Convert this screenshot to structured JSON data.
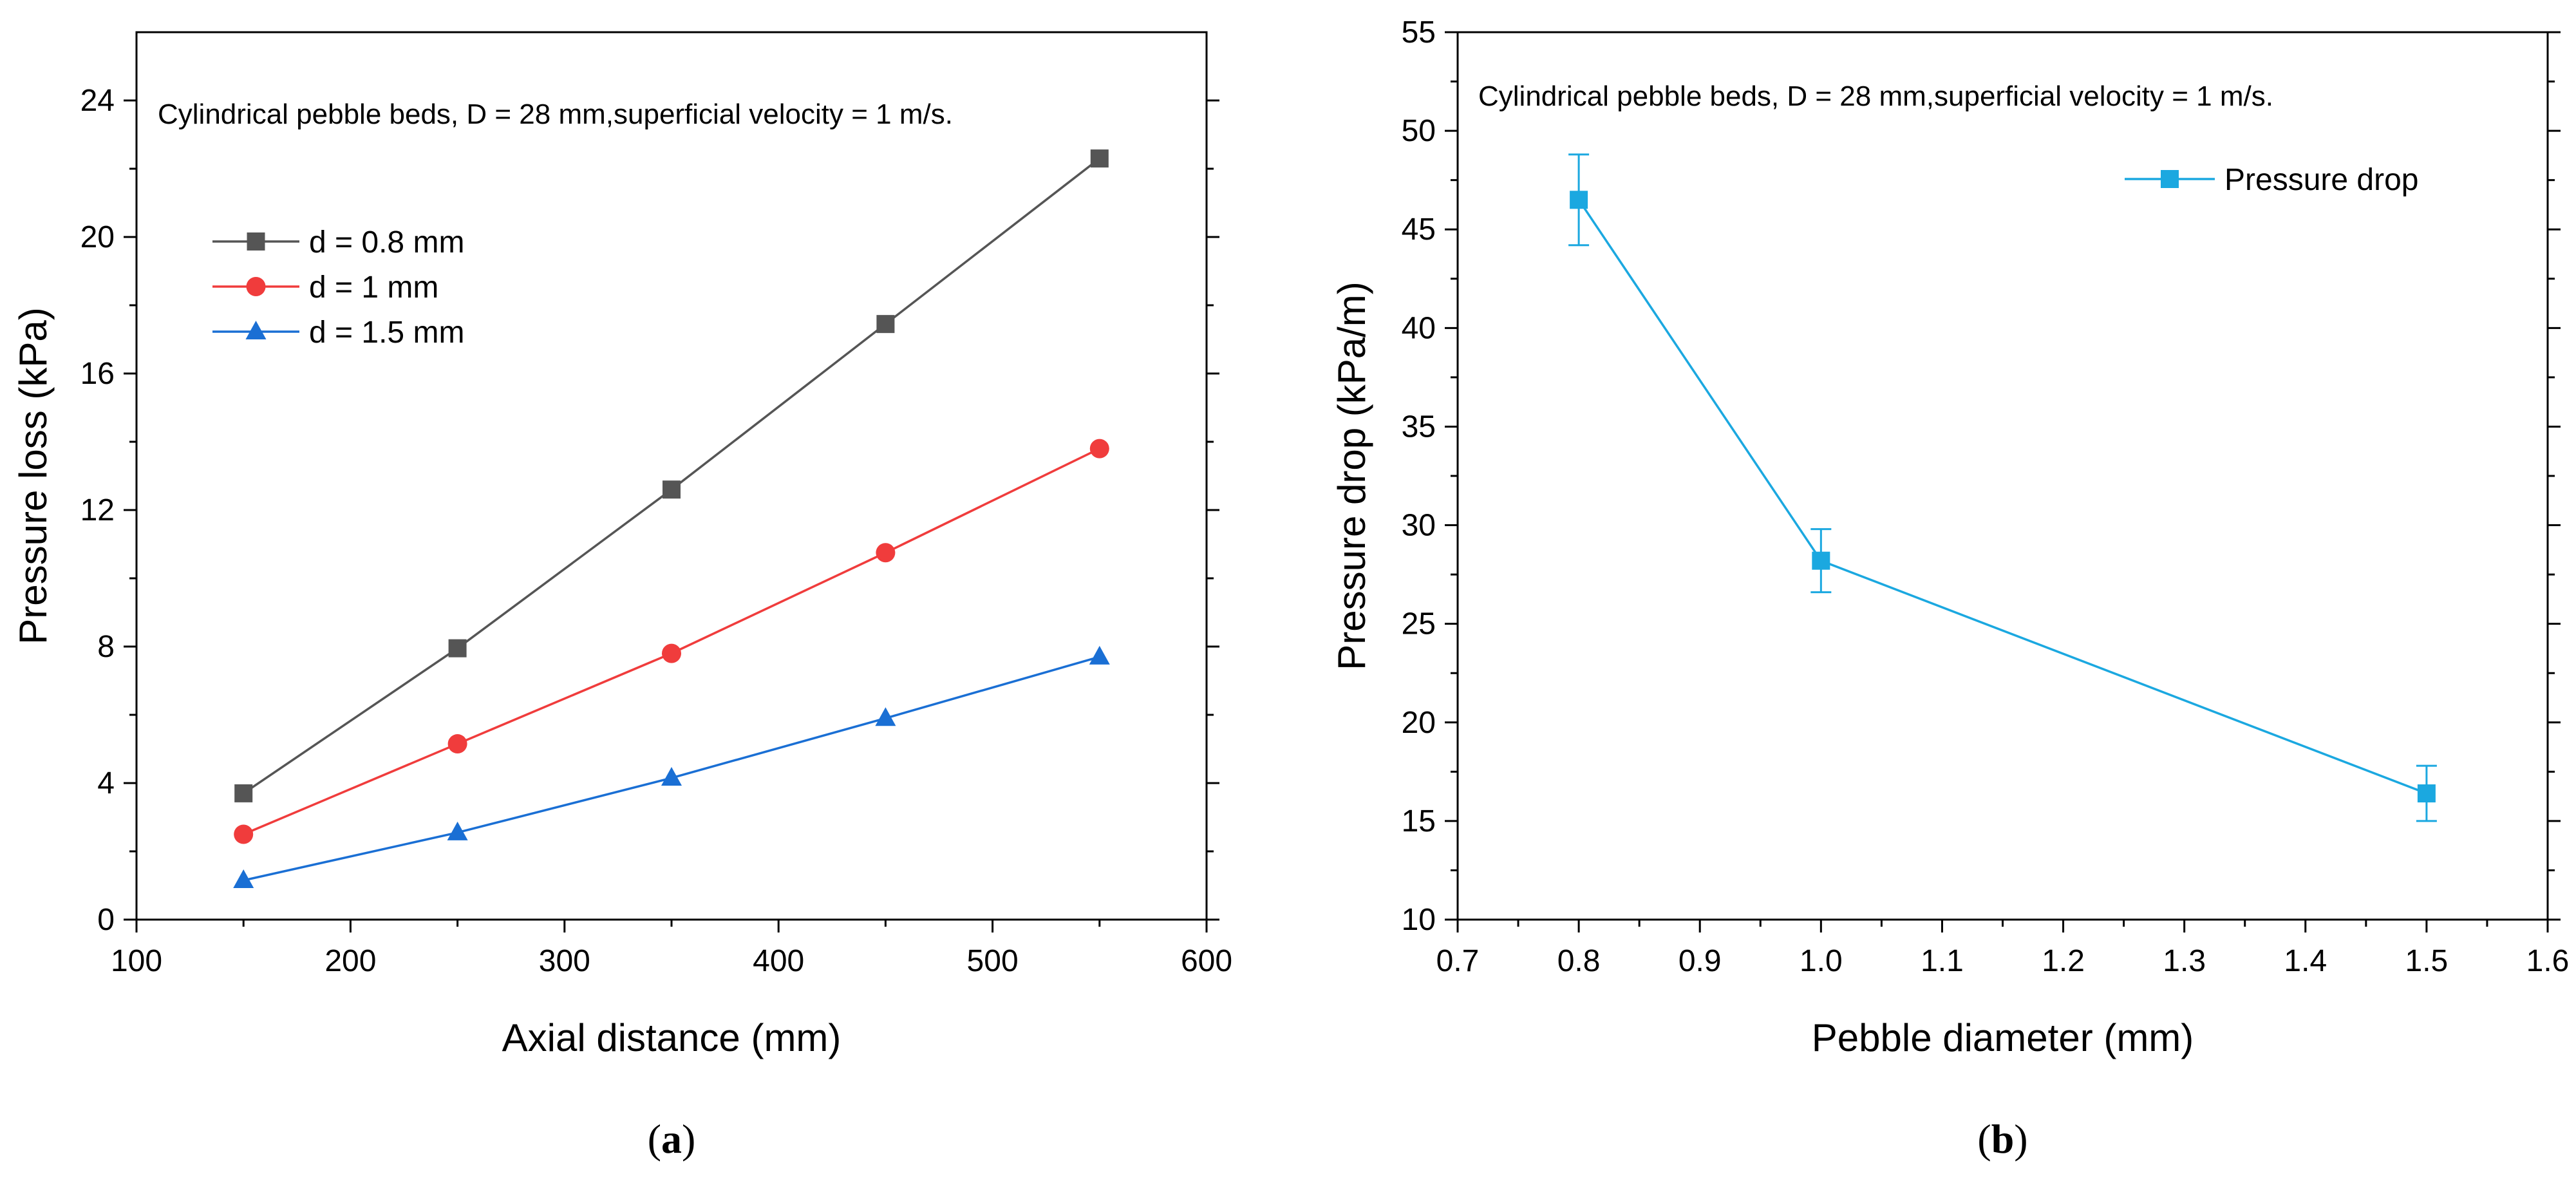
{
  "chart_data": [
    {
      "type": "line",
      "panel_label": {
        "open": "(",
        "letter": "a",
        "close": ")"
      },
      "xlabel": "Axial distance (mm)",
      "ylabel": "Pressure loss (kPa)",
      "xlim": [
        100,
        600
      ],
      "ylim": [
        0,
        26
      ],
      "xticks": [
        100,
        200,
        300,
        400,
        500,
        600
      ],
      "yticks": [
        0,
        4,
        8,
        12,
        16,
        20,
        24
      ],
      "annotation": "Cylindrical pebble beds, D = 28 mm,superficial velocity = 1 m/s.",
      "legend_position": "upper-left",
      "grid": false,
      "x": [
        150,
        250,
        350,
        450,
        550
      ],
      "series": [
        {
          "name": "d = 0.8 mm",
          "values": [
            3.7,
            7.95,
            12.6,
            17.45,
            22.3
          ],
          "color": "#555555",
          "marker": "square"
        },
        {
          "name": "d = 1 mm",
          "values": [
            2.5,
            5.15,
            7.8,
            10.75,
            13.8
          ],
          "color": "#f03c3c",
          "marker": "circle"
        },
        {
          "name": "d = 1.5 mm",
          "values": [
            1.15,
            2.55,
            4.15,
            5.9,
            7.7
          ],
          "color": "#1a6fd4",
          "marker": "triangle"
        }
      ]
    },
    {
      "type": "line",
      "panel_label": {
        "open": "(",
        "letter": "b",
        "close": ")"
      },
      "xlabel": "Pebble diameter (mm)",
      "ylabel": "Pressure drop (kPa/m)",
      "xlim": [
        0.7,
        1.6
      ],
      "ylim": [
        10,
        55
      ],
      "xticks": [
        0.7,
        0.8,
        0.9,
        1.0,
        1.1,
        1.2,
        1.3,
        1.4,
        1.5,
        1.6
      ],
      "yticks": [
        10,
        15,
        20,
        25,
        30,
        35,
        40,
        45,
        50,
        55
      ],
      "annotation": "Cylindrical pebble beds, D = 28 mm,superficial velocity = 1 m/s.",
      "legend_position": "upper-right",
      "grid": false,
      "x": [
        0.8,
        1.0,
        1.5
      ],
      "series": [
        {
          "name": "Pressure drop",
          "values": [
            46.5,
            28.2,
            16.4
          ],
          "error": [
            2.3,
            1.6,
            1.4
          ],
          "color": "#1ba8e0",
          "marker": "square"
        }
      ]
    }
  ]
}
